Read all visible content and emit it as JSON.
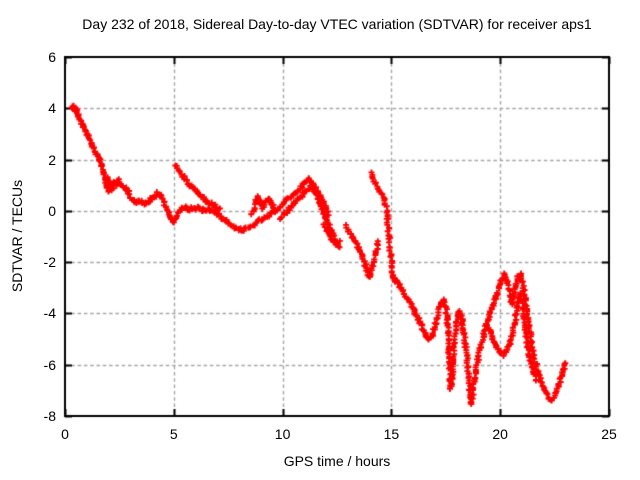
{
  "title": "Day 232 of 2018, Sidereal Day-to-day VTEC variation (SDTVAR) for receiver aps1",
  "chart_data": {
    "type": "scatter",
    "title": "Day 232 of 2018, Sidereal Day-to-day VTEC variation (SDTVAR) for receiver aps1",
    "xlabel": "GPS time / hours",
    "ylabel": "SDTVAR / TECUs",
    "xlim": [
      0,
      25
    ],
    "ylim": [
      -8,
      6
    ],
    "xticks": [
      0,
      5,
      10,
      15,
      20,
      25
    ],
    "yticks": [
      6,
      4,
      2,
      0,
      -2,
      -4,
      -6,
      -8
    ],
    "grid": true,
    "grid_color": "#a6a6a6",
    "marker": "plus",
    "marker_color": "#ff0000",
    "legend": "none",
    "segments": [
      {
        "name": "initial-descent-and-band",
        "points": [
          [
            0.3,
            4.0
          ],
          [
            0.38,
            4.12
          ],
          [
            0.45,
            3.85
          ],
          [
            0.52,
            4.0
          ],
          [
            0.6,
            3.72
          ],
          [
            0.7,
            3.5
          ],
          [
            0.82,
            3.3
          ],
          [
            0.95,
            3.08
          ],
          [
            1.08,
            2.88
          ],
          [
            1.2,
            2.65
          ],
          [
            1.32,
            2.45
          ],
          [
            1.45,
            2.22
          ],
          [
            1.58,
            2.02
          ],
          [
            1.7,
            1.8
          ],
          [
            1.78,
            1.55
          ],
          [
            1.85,
            1.25
          ],
          [
            1.9,
            0.95
          ],
          [
            1.97,
            1.3
          ],
          [
            2.03,
            0.8
          ],
          [
            2.1,
            1.1
          ],
          [
            2.18,
            0.85
          ],
          [
            2.26,
            1.15
          ],
          [
            2.35,
            1.0
          ],
          [
            2.45,
            1.18
          ],
          [
            2.55,
            1.02
          ],
          [
            2.65,
            0.95
          ],
          [
            2.78,
            0.88
          ],
          [
            2.9,
            0.72
          ],
          [
            3.02,
            0.55
          ],
          [
            3.15,
            0.42
          ],
          [
            3.28,
            0.32
          ],
          [
            3.42,
            0.42
          ],
          [
            3.55,
            0.35
          ],
          [
            3.68,
            0.3
          ],
          [
            3.82,
            0.35
          ],
          [
            3.95,
            0.45
          ],
          [
            4.1,
            0.52
          ],
          [
            4.25,
            0.68
          ],
          [
            4.4,
            0.58
          ],
          [
            4.55,
            0.35
          ],
          [
            4.7,
            0.05
          ],
          [
            4.85,
            -0.28
          ],
          [
            4.97,
            -0.45
          ],
          [
            5.1,
            -0.18
          ],
          [
            5.25,
            -0.02
          ],
          [
            5.4,
            0.08
          ],
          [
            5.55,
            0.12
          ],
          [
            5.7,
            0.05
          ],
          [
            5.85,
            0.12
          ],
          [
            6.0,
            0.05
          ],
          [
            6.15,
            0.12
          ],
          [
            6.3,
            0.04
          ],
          [
            6.45,
            0.0
          ],
          [
            6.6,
            0.06
          ],
          [
            6.75,
            0.0
          ],
          [
            6.9,
            -0.06
          ],
          [
            7.05,
            -0.15
          ],
          [
            7.2,
            -0.26
          ],
          [
            7.35,
            -0.36
          ],
          [
            7.5,
            -0.46
          ],
          [
            7.65,
            -0.56
          ],
          [
            7.8,
            -0.65
          ],
          [
            7.95,
            -0.7
          ],
          [
            8.1,
            -0.74
          ],
          [
            8.25,
            -0.74
          ],
          [
            8.4,
            -0.68
          ],
          [
            8.55,
            -0.62
          ],
          [
            8.7,
            -0.52
          ],
          [
            8.85,
            -0.42
          ],
          [
            9.0,
            -0.35
          ],
          [
            9.15,
            -0.3
          ],
          [
            9.3,
            -0.24
          ],
          [
            9.45,
            -0.14
          ],
          [
            9.6,
            -0.04
          ],
          [
            9.75,
            0.06
          ],
          [
            9.9,
            0.16
          ],
          [
            10.05,
            0.3
          ],
          [
            10.2,
            0.45
          ],
          [
            10.35,
            0.55
          ],
          [
            10.5,
            0.62
          ],
          [
            10.65,
            0.76
          ],
          [
            10.8,
            0.9
          ],
          [
            10.95,
            1.02
          ],
          [
            11.1,
            1.16
          ],
          [
            11.2,
            1.26
          ],
          [
            11.3,
            1.1
          ],
          [
            11.4,
            0.9
          ],
          [
            11.5,
            0.7
          ],
          [
            11.6,
            0.5
          ],
          [
            11.7,
            0.3
          ],
          [
            11.8,
            0.1
          ],
          [
            11.9,
            -0.1
          ],
          [
            12.0,
            -0.3
          ],
          [
            12.1,
            -0.52
          ],
          [
            12.2,
            -0.72
          ],
          [
            12.3,
            -0.92
          ],
          [
            12.4,
            -1.15
          ],
          [
            12.5,
            -1.35
          ],
          [
            12.6,
            -1.45
          ]
        ]
      },
      {
        "name": "upper-streak-5h-7h",
        "points": [
          [
            5.05,
            1.78
          ],
          [
            5.18,
            1.6
          ],
          [
            5.32,
            1.45
          ],
          [
            5.46,
            1.3
          ],
          [
            5.6,
            1.15
          ],
          [
            5.75,
            1.0
          ],
          [
            5.9,
            0.9
          ],
          [
            6.05,
            0.76
          ],
          [
            6.2,
            0.62
          ],
          [
            6.35,
            0.5
          ],
          [
            6.5,
            0.4
          ],
          [
            6.65,
            0.3
          ],
          [
            6.8,
            0.24
          ],
          [
            6.95,
            0.15
          ],
          [
            7.1,
            0.05
          ]
        ]
      },
      {
        "name": "bump-9h",
        "points": [
          [
            8.6,
            -0.15
          ],
          [
            8.7,
            0.12
          ],
          [
            8.8,
            0.38
          ],
          [
            8.9,
            0.52
          ],
          [
            9.0,
            0.3
          ],
          [
            9.1,
            0.12
          ],
          [
            9.22,
            0.36
          ],
          [
            9.35,
            0.45
          ],
          [
            9.5,
            0.28
          ],
          [
            9.62,
            0.1
          ]
        ]
      },
      {
        "name": "braid-strand-10h-12h",
        "points": [
          [
            9.9,
            -0.3
          ],
          [
            10.1,
            -0.12
          ],
          [
            10.3,
            0.08
          ],
          [
            10.5,
            0.28
          ],
          [
            10.7,
            0.45
          ],
          [
            10.9,
            0.6
          ],
          [
            11.1,
            0.76
          ],
          [
            11.3,
            0.92
          ],
          [
            11.45,
            1.02
          ],
          [
            11.58,
            0.8
          ],
          [
            11.72,
            0.55
          ],
          [
            11.86,
            0.32
          ],
          [
            12.0,
            0.1
          ],
          [
            12.12,
            -0.15
          ]
        ]
      },
      {
        "name": "hook-12h",
        "points": [
          [
            11.92,
            -0.5
          ],
          [
            12.06,
            -0.75
          ],
          [
            12.2,
            -1.0
          ],
          [
            12.34,
            -1.18
          ],
          [
            12.48,
            -1.3
          ],
          [
            12.62,
            -1.18
          ]
        ]
      },
      {
        "name": "streak-13h-14h",
        "points": [
          [
            12.9,
            -0.6
          ],
          [
            13.05,
            -0.8
          ],
          [
            13.2,
            -1.0
          ],
          [
            13.35,
            -1.22
          ],
          [
            13.5,
            -1.45
          ],
          [
            13.65,
            -1.75
          ],
          [
            13.8,
            -2.1
          ],
          [
            13.9,
            -2.4
          ],
          [
            14.0,
            -2.6
          ],
          [
            14.1,
            -2.32
          ],
          [
            14.2,
            -1.95
          ],
          [
            14.3,
            -1.6
          ],
          [
            14.38,
            -1.18
          ]
        ]
      },
      {
        "name": "spike-column-14h",
        "step": 3.2,
        "points": [
          [
            14.05,
            1.5
          ],
          [
            14.15,
            1.28
          ],
          [
            14.25,
            1.05
          ],
          [
            14.35,
            0.9
          ],
          [
            14.45,
            0.76
          ],
          [
            14.55,
            0.65
          ],
          [
            14.65,
            0.5
          ],
          [
            14.72,
            0.28
          ],
          [
            14.78,
            -0.02
          ],
          [
            14.82,
            -0.34
          ],
          [
            14.86,
            -0.68
          ],
          [
            14.9,
            -1.02
          ],
          [
            14.94,
            -1.4
          ],
          [
            14.98,
            -1.8
          ],
          [
            15.02,
            -2.2
          ],
          [
            15.06,
            -2.55
          ]
        ]
      },
      {
        "name": "main-descent-15h-23h",
        "points": [
          [
            15.06,
            -2.55
          ],
          [
            15.2,
            -2.72
          ],
          [
            15.35,
            -2.92
          ],
          [
            15.5,
            -3.12
          ],
          [
            15.65,
            -3.32
          ],
          [
            15.8,
            -3.52
          ],
          [
            15.95,
            -3.74
          ],
          [
            16.1,
            -3.98
          ],
          [
            16.25,
            -4.22
          ],
          [
            16.4,
            -4.48
          ],
          [
            16.52,
            -4.72
          ],
          [
            16.62,
            -4.92
          ],
          [
            16.72,
            -5.02
          ],
          [
            16.82,
            -4.95
          ],
          [
            16.92,
            -4.75
          ],
          [
            17.02,
            -4.42
          ],
          [
            17.12,
            -4.05
          ],
          [
            17.22,
            -3.76
          ],
          [
            17.32,
            -3.56
          ],
          [
            17.42,
            -3.5
          ],
          [
            17.5,
            -3.76
          ],
          [
            17.56,
            -4.2
          ],
          [
            17.61,
            -4.9
          ],
          [
            17.64,
            -5.5
          ],
          [
            17.67,
            -6.1
          ],
          [
            17.7,
            -6.6
          ],
          [
            17.73,
            -6.95
          ],
          [
            17.78,
            -6.5
          ],
          [
            17.83,
            -5.9
          ],
          [
            17.88,
            -5.3
          ],
          [
            17.93,
            -4.8
          ],
          [
            18.0,
            -4.32
          ],
          [
            18.08,
            -4.0
          ],
          [
            18.16,
            -3.95
          ],
          [
            18.24,
            -4.25
          ],
          [
            18.32,
            -4.7
          ],
          [
            18.4,
            -5.2
          ],
          [
            18.48,
            -5.8
          ],
          [
            18.54,
            -6.4
          ],
          [
            18.6,
            -7.0
          ],
          [
            18.65,
            -7.48
          ],
          [
            18.72,
            -7.2
          ],
          [
            18.8,
            -6.7
          ],
          [
            18.9,
            -6.15
          ],
          [
            19.0,
            -5.7
          ],
          [
            19.1,
            -5.28
          ],
          [
            19.22,
            -4.86
          ],
          [
            19.35,
            -4.45
          ],
          [
            19.5,
            -4.1
          ],
          [
            19.65,
            -3.72
          ],
          [
            19.8,
            -3.36
          ],
          [
            19.95,
            -3.0
          ],
          [
            20.08,
            -2.68
          ],
          [
            20.2,
            -2.48
          ],
          [
            20.32,
            -2.68
          ],
          [
            20.42,
            -3.08
          ],
          [
            20.52,
            -3.6
          ],
          [
            20.62,
            -3.3
          ],
          [
            20.72,
            -2.9
          ],
          [
            20.82,
            -2.58
          ],
          [
            20.93,
            -2.45
          ],
          [
            21.03,
            -2.8
          ],
          [
            21.13,
            -3.3
          ],
          [
            21.23,
            -3.92
          ],
          [
            21.33,
            -4.52
          ],
          [
            21.43,
            -5.1
          ],
          [
            21.53,
            -5.6
          ],
          [
            21.65,
            -6.02
          ],
          [
            21.8,
            -6.42
          ],
          [
            21.95,
            -6.8
          ],
          [
            22.1,
            -7.1
          ],
          [
            22.25,
            -7.32
          ],
          [
            22.4,
            -7.38
          ],
          [
            22.55,
            -7.15
          ],
          [
            22.7,
            -6.82
          ],
          [
            22.82,
            -6.45
          ],
          [
            22.92,
            -6.12
          ],
          [
            23.0,
            -5.92
          ]
        ]
      },
      {
        "name": "lower-tangle-19h-21h",
        "points": [
          [
            19.4,
            -4.45
          ],
          [
            19.55,
            -4.78
          ],
          [
            19.7,
            -5.06
          ],
          [
            19.85,
            -5.3
          ],
          [
            20.0,
            -5.5
          ],
          [
            20.15,
            -5.6
          ],
          [
            20.3,
            -5.46
          ],
          [
            20.45,
            -5.15
          ],
          [
            20.58,
            -4.72
          ],
          [
            20.7,
            -4.22
          ],
          [
            20.8,
            -3.72
          ],
          [
            20.9,
            -3.25
          ],
          [
            21.0,
            -3.55
          ],
          [
            21.1,
            -4.15
          ],
          [
            21.2,
            -4.85
          ],
          [
            21.3,
            -5.45
          ],
          [
            21.42,
            -5.95
          ],
          [
            21.55,
            -6.35
          ],
          [
            21.68,
            -6.62
          ]
        ]
      }
    ]
  }
}
